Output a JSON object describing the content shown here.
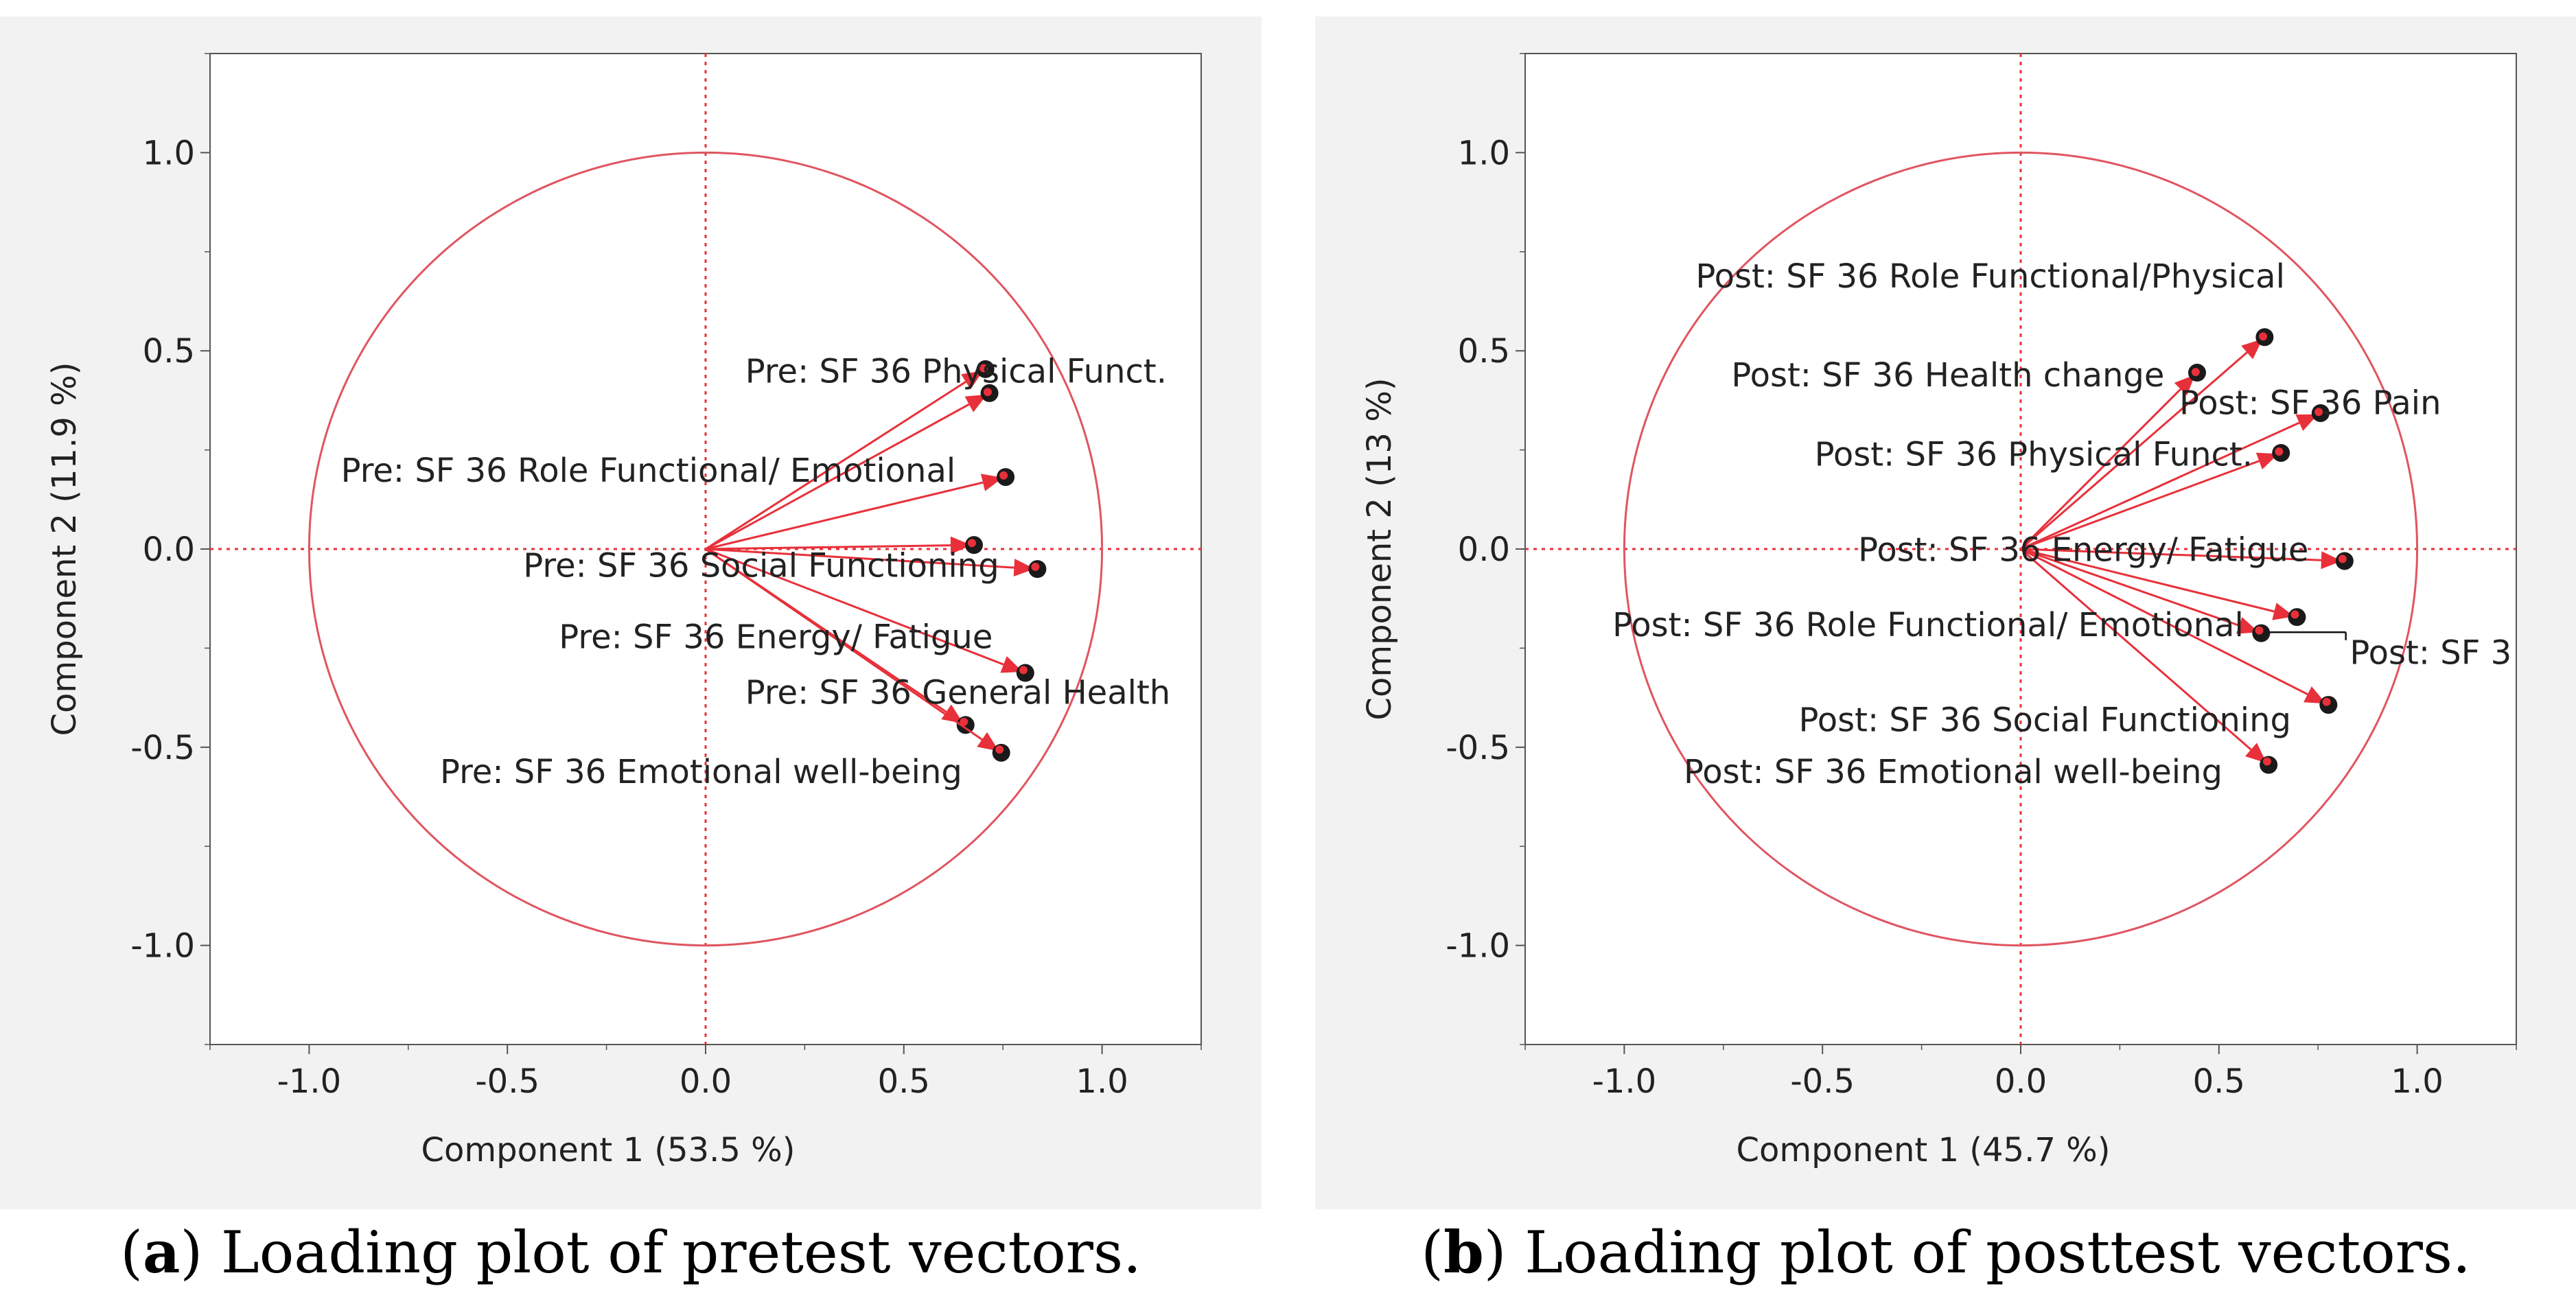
{
  "colors": {
    "vector": "#e8303a",
    "circle": "#e05560",
    "refline": "#e8303a",
    "text": "#222222",
    "axis": "#555555",
    "panel_bg": "#f2f2f2",
    "plot_bg": "#ffffff",
    "dot": "#1a1a1a"
  },
  "captions": [
    {
      "letter": "a",
      "open": "(",
      "close": ")",
      "text": "Loading plot of pretest vectors."
    },
    {
      "letter": "b",
      "open": "(",
      "close": ")",
      "text": "Loading plot of posttest vectors."
    }
  ],
  "chart_data": [
    {
      "type": "scatter",
      "subtype": "loading-plot",
      "xlabel": "Component 1  (53.5 %)",
      "ylabel": "Component 2  (11.9 %)",
      "xlim": [
        -1.25,
        1.25
      ],
      "ylim": [
        -1.25,
        1.25
      ],
      "xticks": [
        -1.0,
        -0.5,
        0.0,
        0.5,
        1.0
      ],
      "yticks": [
        1.0,
        0.5,
        0.0,
        -0.5,
        -1.0
      ],
      "xtick_labels": [
        "-1.0",
        "-0.5",
        "0.0",
        "0.5",
        "1.0"
      ],
      "ytick_labels": [
        "1.0",
        "0.5",
        "0.0",
        "-0.5",
        "-1.0"
      ],
      "unit_circle": true,
      "vectors": [
        {
          "x": 0.7,
          "y": 0.45
        },
        {
          "x": 0.71,
          "y": 0.39
        },
        {
          "x": 0.75,
          "y": 0.18
        },
        {
          "x": 0.67,
          "y": 0.01
        },
        {
          "x": 0.83,
          "y": -0.05
        },
        {
          "x": 0.8,
          "y": -0.31
        },
        {
          "x": 0.65,
          "y": -0.44
        },
        {
          "x": 0.74,
          "y": -0.51
        }
      ],
      "labels": [
        {
          "text": "Pre: SF 36 Physical Funct.",
          "x": 0.1,
          "y": 0.42
        },
        {
          "text": "Pre: SF 36 Role Functional/ Emotional",
          "x": -0.92,
          "y": 0.17
        },
        {
          "text": "Pre: SF 36 Social Functioning",
          "x": -0.46,
          "y": -0.07
        },
        {
          "text": "Pre: SF 36 Energy/ Fatigue",
          "x": -0.37,
          "y": -0.25
        },
        {
          "text": "Pre: SF 36 General Health",
          "x": 0.1,
          "y": -0.39
        },
        {
          "text": "Pre: SF 36 Emotional well-being",
          "x": -0.67,
          "y": -0.59
        }
      ]
    },
    {
      "type": "scatter",
      "subtype": "loading-plot",
      "xlabel": "Component 1  (45.7 %)",
      "ylabel": "Component 2  (13 %)",
      "xlim": [
        -1.25,
        1.25
      ],
      "ylim": [
        -1.25,
        1.25
      ],
      "xticks": [
        -1.0,
        -0.5,
        0.0,
        0.5,
        1.0
      ],
      "yticks": [
        1.0,
        0.5,
        0.0,
        -0.5,
        -1.0
      ],
      "xtick_labels": [
        "-1.0",
        "-0.5",
        "0.0",
        "0.5",
        "1.0"
      ],
      "ytick_labels": [
        "1.0",
        "0.5",
        "0.0",
        "-0.5",
        "-1.0"
      ],
      "unit_circle": true,
      "vectors": [
        {
          "x": 0.61,
          "y": 0.53
        },
        {
          "x": 0.44,
          "y": 0.44
        },
        {
          "x": 0.75,
          "y": 0.34
        },
        {
          "x": 0.65,
          "y": 0.24
        },
        {
          "x": 0.81,
          "y": -0.03
        },
        {
          "x": 0.69,
          "y": -0.17
        },
        {
          "x": 0.6,
          "y": -0.21
        },
        {
          "x": 0.77,
          "y": -0.39
        },
        {
          "x": 0.62,
          "y": -0.54
        }
      ],
      "labels": [
        {
          "text": "Post: SF 36 Role Functional/Physical",
          "x": -0.82,
          "y": 0.66
        },
        {
          "text": "Post: SF 36 Health change",
          "x": -0.73,
          "y": 0.41
        },
        {
          "text": "Post: SF 36 Pain",
          "x": 0.4,
          "y": 0.34
        },
        {
          "text": "Post: SF 36 Physical Funct.",
          "x": -0.52,
          "y": 0.21
        },
        {
          "text": "Post: SF 36 Energy/ Fatigue",
          "x": -0.41,
          "y": -0.03
        },
        {
          "text": "Post: SF 36 Role Functional/ Emotional",
          "x": -1.03,
          "y": -0.22
        },
        {
          "text": "Post: SF 3",
          "x": 0.83,
          "y": -0.29
        },
        {
          "text": "Post: SF 36 Social Functioning",
          "x": -0.56,
          "y": -0.46
        },
        {
          "text": "Post: SF 36 Emotional well-being",
          "x": -0.85,
          "y": -0.59
        }
      ],
      "leader_line": {
        "from": [
          0.61,
          -0.21
        ],
        "to": [
          0.82,
          -0.21
        ],
        "tick": [
          0.82,
          -0.23
        ]
      }
    }
  ]
}
